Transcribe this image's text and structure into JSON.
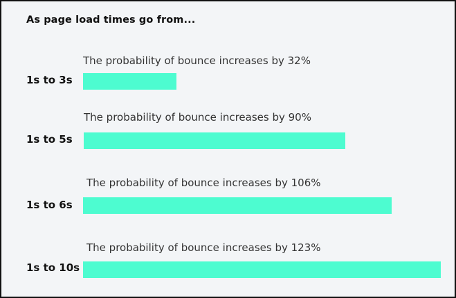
{
  "chart_data": {
    "type": "bar",
    "orientation": "horizontal",
    "title": "As page load times go from...",
    "categories": [
      "1s to 3s",
      "1s to 5s",
      "1s to 6s",
      "1s to 10s"
    ],
    "values": [
      32,
      90,
      106,
      123
    ],
    "unit": "%",
    "annotations": [
      "The probability of bounce increases by 32%",
      "The probability of bounce increases by 90%",
      "The probability of bounce increases by 106%",
      "The probability of bounce increases by 123%"
    ],
    "bar_color": "#4dfcd0",
    "xlabel": "",
    "ylabel": "",
    "grid": false,
    "legend": "none"
  }
}
